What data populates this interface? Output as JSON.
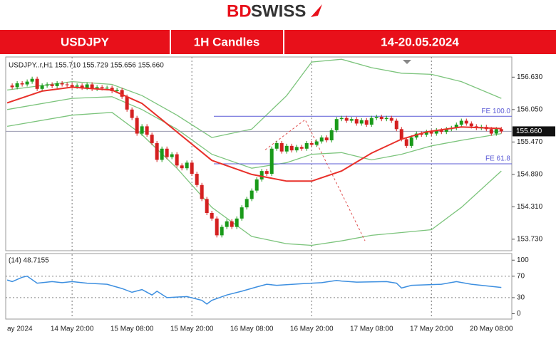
{
  "header": {
    "logo": [
      "BD",
      "SWISS"
    ]
  },
  "banner": [
    "USDJPY",
    "1H Candles",
    "14-20.05.2024"
  ],
  "chart_data": [
    {
      "type": "candlestick",
      "title": "USDJPY..r,H1  155.710 155.729 155.656 155.660",
      "x": [
        0,
        1,
        2,
        3,
        4,
        5,
        6,
        7,
        8,
        9,
        10,
        11,
        12,
        13,
        14,
        15,
        16,
        17,
        18,
        19,
        20,
        21,
        22,
        23,
        24,
        25,
        26,
        27,
        28,
        29,
        30,
        31,
        32,
        33,
        34,
        35,
        36,
        37,
        38,
        39,
        40,
        41,
        42,
        43,
        44,
        45,
        46,
        47,
        48,
        49,
        50,
        51,
        52,
        53,
        54,
        55,
        56,
        57,
        58,
        59,
        60,
        61,
        62,
        63,
        64,
        65,
        66,
        67,
        68,
        69,
        70,
        71,
        72,
        73,
        74,
        75,
        76,
        77,
        78,
        79,
        80,
        81,
        82,
        83,
        84,
        85,
        86,
        87,
        88,
        89,
        90,
        91,
        92,
        93,
        94,
        95,
        96,
        97,
        98,
        99
      ],
      "close": [
        156.48,
        156.45,
        156.52,
        156.5,
        156.55,
        156.6,
        156.42,
        156.48,
        156.5,
        156.47,
        156.52,
        156.5,
        156.49,
        156.46,
        156.48,
        156.44,
        156.5,
        156.42,
        156.45,
        156.43,
        156.44,
        156.38,
        156.4,
        156.28,
        156.05,
        155.9,
        155.62,
        155.75,
        155.6,
        155.45,
        155.15,
        155.35,
        155.2,
        155.25,
        155.05,
        155.0,
        155.1,
        154.9,
        154.7,
        154.45,
        154.2,
        154.1,
        153.8,
        153.95,
        154.05,
        153.95,
        154.1,
        154.3,
        154.45,
        154.6,
        154.8,
        154.95,
        154.9,
        155.35,
        155.45,
        155.3,
        155.4,
        155.32,
        155.38,
        155.35,
        155.45,
        155.42,
        155.48,
        155.55,
        155.5,
        155.68,
        155.88,
        155.9,
        155.85,
        155.88,
        155.8,
        155.86,
        155.78,
        155.9,
        155.92,
        155.88,
        155.9,
        155.85,
        155.7,
        155.52,
        155.4,
        155.55,
        155.62,
        155.6,
        155.65,
        155.62,
        155.68,
        155.65,
        155.7,
        155.72,
        155.78,
        155.85,
        155.8,
        155.75,
        155.72,
        155.74,
        155.7,
        155.62,
        155.7,
        155.66
      ],
      "up_color": "#1a9a1a",
      "down_color": "#d42020",
      "ma": {
        "color": "#e8302a",
        "x": [
          0,
          7,
          13,
          21,
          27,
          34,
          41,
          49,
          56,
          61,
          67,
          73,
          79,
          84,
          91,
          99
        ],
        "values": [
          156.17,
          156.38,
          156.45,
          156.4,
          156.16,
          155.65,
          155.14,
          154.89,
          154.77,
          154.77,
          154.95,
          155.27,
          155.52,
          155.65,
          155.74,
          155.71
        ]
      },
      "bands": [
        {
          "color": "#7cc47c",
          "x": [
            0,
            13,
            21,
            27,
            34,
            41,
            49,
            56,
            61,
            67,
            73,
            79,
            85,
            91,
            99
          ],
          "values": [
            156.4,
            156.55,
            156.5,
            156.3,
            155.95,
            155.55,
            155.7,
            156.3,
            156.9,
            156.95,
            156.8,
            156.7,
            156.68,
            156.55,
            156.25
          ]
        },
        {
          "color": "#7cc47c",
          "x": [
            0,
            13,
            21,
            27,
            34,
            41,
            49,
            56,
            61,
            67,
            73,
            79,
            85,
            91,
            99
          ],
          "values": [
            156.05,
            156.25,
            156.28,
            156.05,
            155.7,
            155.25,
            155.0,
            155.1,
            155.25,
            155.28,
            155.15,
            155.25,
            155.4,
            155.5,
            155.62
          ]
        },
        {
          "color": "#7cc47c",
          "x": [
            0,
            13,
            21,
            27,
            34,
            41,
            49,
            56,
            61,
            67,
            73,
            79,
            85,
            91,
            99
          ],
          "values": [
            155.75,
            155.95,
            156.0,
            155.6,
            155.0,
            154.3,
            153.78,
            153.65,
            153.62,
            153.7,
            153.8,
            153.85,
            153.9,
            154.3,
            154.95
          ]
        }
      ],
      "levels": [
        {
          "label": "FE 100.0",
          "value": 155.93,
          "x_start": 41.4,
          "color": "#5b5bd6"
        },
        {
          "label": "FE 61.8",
          "value": 155.08,
          "x_start": 41.4,
          "color": "#5b5bd6"
        }
      ],
      "fib_path": {
        "color": "#e05050",
        "x": [
          51.7,
          59.7,
          71.7
        ],
        "values": [
          155.33,
          155.87,
          153.7
        ]
      },
      "price_tag": {
        "value": 155.66,
        "label": "155.660"
      },
      "xlim": [
        -0.3,
        101.1
      ],
      "ylim": [
        153.55,
        156.94
      ],
      "xticks": [
        {
          "value": 0,
          "label": "ay 2024"
        },
        {
          "value": 13,
          "label": "14 May 20:00"
        },
        {
          "value": 25,
          "label": "15 May 08:00"
        },
        {
          "value": 37,
          "label": "15 May 20:00"
        },
        {
          "value": 49,
          "label": "16 May 08:00"
        },
        {
          "value": 61,
          "label": "16 May 20:00"
        },
        {
          "value": 73,
          "label": "17 May 08:00"
        },
        {
          "value": 85,
          "label": "17 May 20:00"
        },
        {
          "value": 97,
          "label": "20 May 08:00"
        }
      ],
      "yticks": [
        {
          "value": 156.63,
          "label": "156.630"
        },
        {
          "value": 156.05,
          "label": "156.050"
        },
        {
          "value": 155.47,
          "label": "155.470"
        },
        {
          "value": 154.89,
          "label": "154.890"
        },
        {
          "value": 154.31,
          "label": "154.310"
        },
        {
          "value": 153.73,
          "label": "153.730"
        }
      ]
    },
    {
      "type": "line",
      "title": "(14) 48.7155",
      "color": "#3d8fe0",
      "x": [
        0,
        1,
        3,
        4,
        6,
        9,
        11,
        13,
        16,
        20,
        23,
        25,
        27,
        29,
        30,
        32,
        36,
        39,
        40,
        41,
        44,
        47,
        50,
        52,
        54,
        59,
        63,
        66,
        67,
        70,
        76,
        78,
        79,
        81,
        87,
        90,
        93,
        99
      ],
      "values": [
        63,
        60,
        68,
        70,
        57,
        60,
        58,
        60,
        57,
        55,
        47,
        40,
        45,
        35,
        42,
        30,
        32,
        25,
        18,
        25,
        35,
        42,
        50,
        55,
        53,
        56,
        58,
        62,
        61,
        59,
        60,
        57,
        48,
        53,
        55,
        60,
        55,
        49
      ],
      "xlim": [
        -0.3,
        101.1
      ],
      "ylim": [
        -10,
        107
      ],
      "yticks": [
        100,
        70,
        30,
        0
      ],
      "grid_levels": [
        70,
        30
      ]
    }
  ]
}
